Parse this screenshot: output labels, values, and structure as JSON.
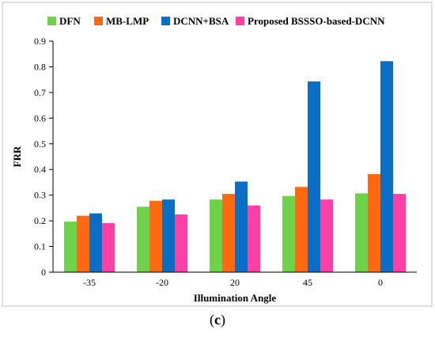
{
  "chart_data": {
    "type": "bar",
    "categories": [
      "-35",
      "-20",
      "20",
      "45",
      "0"
    ],
    "series": [
      {
        "name": "DFN",
        "color": "#70d24a",
        "values": [
          0.197,
          0.255,
          0.283,
          0.297,
          0.307
        ]
      },
      {
        "name": "MB-LMP",
        "color": "#ff6a10",
        "values": [
          0.22,
          0.278,
          0.305,
          0.332,
          0.382
        ]
      },
      {
        "name": "DCNN+BSA",
        "color": "#0a6fc4",
        "values": [
          0.229,
          0.283,
          0.353,
          0.743,
          0.822
        ]
      },
      {
        "name": "Proposed BSSSO-based-DCNN",
        "color": "#ff3fa5",
        "values": [
          0.191,
          0.225,
          0.26,
          0.283,
          0.305
        ]
      }
    ],
    "xlabel": "Illumination Angle",
    "ylabel": "FRR",
    "ylim": [
      0,
      0.9
    ],
    "yticks": [
      "0",
      "0.1",
      "0.2",
      "0.3",
      "0.4",
      "0.5",
      "0.6",
      "0.7",
      "0.8",
      "0.9"
    ],
    "grid": false,
    "legend_position": "top"
  },
  "caption": {
    "open": "(",
    "letter": "c",
    "close": ")"
  }
}
